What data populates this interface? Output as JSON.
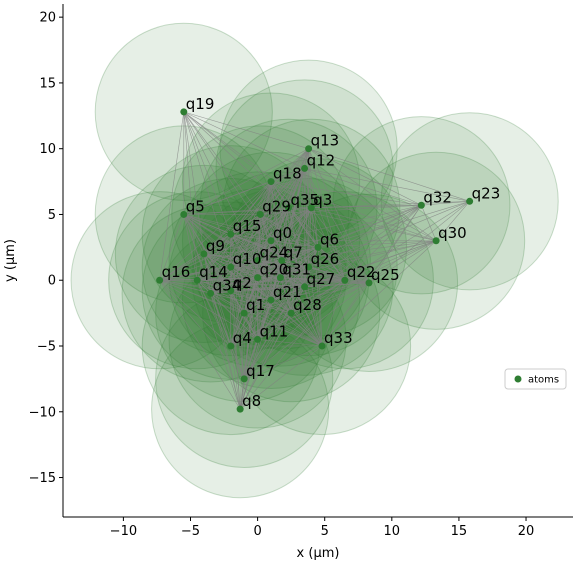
{
  "chart_data": {
    "type": "scatter",
    "xlabel": "x (μm)",
    "ylabel": "y (μm)",
    "xlim": [
      -14.5,
      23.5
    ],
    "ylim": [
      -18,
      21
    ],
    "xticks": [
      -10,
      -5,
      0,
      5,
      10,
      15,
      20
    ],
    "yticks": [
      -15,
      -10,
      -5,
      0,
      5,
      10,
      15,
      20
    ],
    "xtick_labels": [
      "−10",
      "−5",
      "0",
      "5",
      "10",
      "15",
      "20"
    ],
    "ytick_labels": [
      "−15",
      "−10",
      "−5",
      "0",
      "5",
      "10",
      "15",
      "20"
    ],
    "blockade_radius": 6.6,
    "legend": {
      "label": "atoms",
      "position": "center-right"
    },
    "colors": {
      "atom": "#2e7d32",
      "halo": "#2e7d32",
      "edge": "#808080"
    },
    "points": [
      {
        "label": "q0",
        "x": 1.0,
        "y": 3.0
      },
      {
        "label": "q1",
        "x": -1.0,
        "y": -2.5
      },
      {
        "label": "q2",
        "x": -2.0,
        "y": -0.8
      },
      {
        "label": "q3",
        "x": 4.0,
        "y": 5.5
      },
      {
        "label": "q4",
        "x": -2.0,
        "y": -5.0
      },
      {
        "label": "q5",
        "x": -5.5,
        "y": 5.0
      },
      {
        "label": "q6",
        "x": 4.5,
        "y": 2.5
      },
      {
        "label": "q7",
        "x": 1.8,
        "y": 1.5
      },
      {
        "label": "q8",
        "x": -1.3,
        "y": -9.8
      },
      {
        "label": "q9",
        "x": -4.0,
        "y": 2.0
      },
      {
        "label": "q10",
        "x": -2.0,
        "y": 1.0
      },
      {
        "label": "q11",
        "x": 0.0,
        "y": -4.5
      },
      {
        "label": "q12",
        "x": 3.5,
        "y": 8.5
      },
      {
        "label": "q13",
        "x": 3.8,
        "y": 10.0
      },
      {
        "label": "q14",
        "x": -4.5,
        "y": 0.0
      },
      {
        "label": "q15",
        "x": -2.0,
        "y": 3.5
      },
      {
        "label": "q16",
        "x": -7.3,
        "y": 0.0
      },
      {
        "label": "q17",
        "x": -1.0,
        "y": -7.5
      },
      {
        "label": "q18",
        "x": 1.0,
        "y": 7.5
      },
      {
        "label": "q19",
        "x": -5.5,
        "y": 12.8
      },
      {
        "label": "q20",
        "x": 0.0,
        "y": 0.2
      },
      {
        "label": "q21",
        "x": 1.0,
        "y": -1.5
      },
      {
        "label": "q22",
        "x": 6.5,
        "y": 0.0
      },
      {
        "label": "q23",
        "x": 15.8,
        "y": 6.0
      },
      {
        "label": "q24",
        "x": 0.0,
        "y": 1.5
      },
      {
        "label": "q25",
        "x": 8.3,
        "y": -0.2
      },
      {
        "label": "q26",
        "x": 3.8,
        "y": 1.0
      },
      {
        "label": "q27",
        "x": 3.5,
        "y": -0.5
      },
      {
        "label": "q28",
        "x": 2.5,
        "y": -2.5
      },
      {
        "label": "q29",
        "x": 0.2,
        "y": 5.0
      },
      {
        "label": "q30",
        "x": 13.3,
        "y": 3.0
      },
      {
        "label": "q31",
        "x": 1.7,
        "y": 0.2
      },
      {
        "label": "q32",
        "x": 12.2,
        "y": 5.7
      },
      {
        "label": "q33",
        "x": 4.8,
        "y": -5.0
      },
      {
        "label": "q34",
        "x": -3.5,
        "y": -1.0
      },
      {
        "label": "q35",
        "x": 2.3,
        "y": 5.5
      }
    ]
  }
}
